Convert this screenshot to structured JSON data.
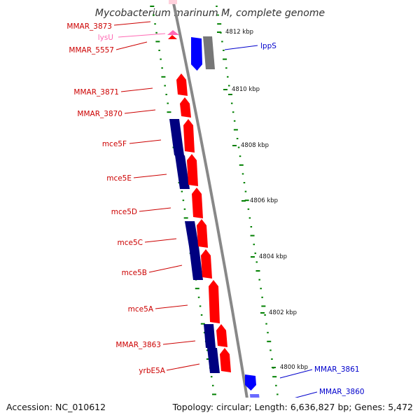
{
  "title": "Mycobacterium marinum M, complete genome",
  "footer": {
    "accession": "Accession: NC_010612",
    "topology": "Topology: circular; Length: 6,636,827 bp; Genes: 5,472"
  },
  "colors": {
    "forward_gene": "#ff0000",
    "reverse_gene": "#0000ff",
    "operon_block": "#000080",
    "pseudo_gene": "#777777",
    "faded_gene": "#ff69b4",
    "tick": "#008000",
    "backbone": "#888888",
    "label_forward": "#cc0000",
    "label_reverse": "#0000cc",
    "label_faded": "#ff69b4"
  },
  "kbp_ticks": [
    "4812 kbp",
    "4810 kbp",
    "4808 kbp",
    "4806 kbp",
    "4804 kbp",
    "4802 kbp",
    "4800 kbp"
  ],
  "left_labels": [
    "MMAR_3873",
    "lysU",
    "MMAR_5557",
    "MMAR_3871",
    "MMAR_3870",
    "mce5F",
    "mce5E",
    "mce5D",
    "mce5C",
    "mce5B",
    "mce5A",
    "MMAR_3863",
    "yrbE5A"
  ],
  "right_labels": [
    "lppS",
    "MMAR_3861",
    "MMAR_3860"
  ]
}
